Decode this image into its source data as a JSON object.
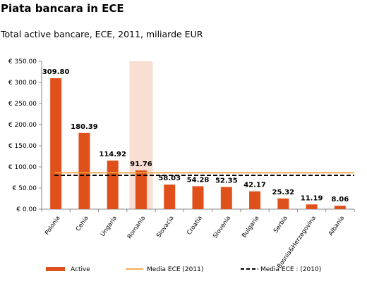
{
  "title": "Piata bancara in ECE",
  "subtitle": "Total active bancare, ECE, 2011, miliarde EUR",
  "colors": {
    "bars": "#e0501a",
    "highlight": "#f8ded3",
    "avg2011": "#f2a03c",
    "avg2010": "#000000"
  },
  "chart_data": {
    "type": "bar",
    "categories": [
      "Polonia",
      "Cehia",
      "Ungaria",
      "Romania",
      "Slovacia",
      "Croatia",
      "Slovenia",
      "Bulgaria",
      "Serbia",
      "Bosnia&Herzegovina",
      "Albania"
    ],
    "series": [
      {
        "name": "Active",
        "values": [
          309.8,
          180.39,
          114.92,
          91.76,
          58.03,
          54.28,
          52.35,
          42.17,
          25.32,
          11.19,
          8.06
        ]
      }
    ],
    "data_labels": [
      "309.80",
      "180.39",
      "114.92",
      "91.76",
      "58.03",
      "54.28",
      "52.35",
      "42.17",
      "25.32",
      "11.19",
      "8.06"
    ],
    "reference_lines": [
      {
        "name": "Media ECE (2011)",
        "value": 86,
        "style": "solid"
      },
      {
        "name": "Media ECE : (2010)",
        "value": 80,
        "style": "dashed"
      }
    ],
    "highlighted_category": "Romania",
    "ylim": [
      0,
      350
    ],
    "yticks": [
      0,
      50,
      100,
      150,
      200,
      250,
      300,
      350
    ],
    "ytick_labels": [
      "€ 0.00",
      "€ 50.00",
      "€ 100.00",
      "€ 150.00",
      "€ 200.00",
      "€ 250.00",
      "€ 300.00",
      "€ 350.00"
    ],
    "legend": {
      "placement": "bottom",
      "entries": [
        "Active",
        "Media ECE (2011)",
        "Media ECE : (2010)"
      ]
    },
    "grid": false
  }
}
